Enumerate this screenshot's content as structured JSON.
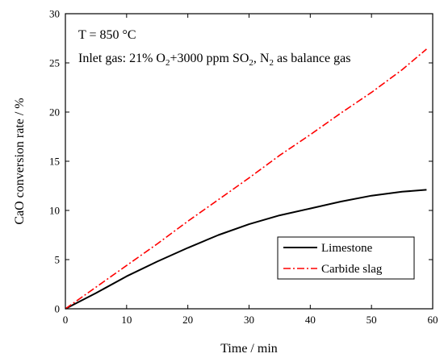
{
  "chart_data": {
    "type": "line",
    "title": "",
    "xlabel": "Time / min",
    "ylabel": "CaO conversion rate / %",
    "xlim": [
      0,
      60
    ],
    "ylim": [
      0,
      30
    ],
    "xticks": [
      0,
      10,
      20,
      30,
      40,
      50,
      60
    ],
    "yticks": [
      0,
      5,
      10,
      15,
      20,
      25,
      30
    ],
    "grid": false,
    "legend_position": "bottom-right",
    "annotations": {
      "temperature": "T = 850 °C",
      "gas": {
        "parts": [
          "Inlet gas: 21% O",
          "2",
          "+3000 ppm SO",
          "2",
          ", N",
          "2",
          " as balance gas"
        ],
        "subscript_flags": [
          false,
          true,
          false,
          true,
          false,
          true,
          false
        ]
      }
    },
    "series": [
      {
        "name": "Limestone",
        "color": "#000000",
        "dash": "solid",
        "x": [
          0,
          5,
          10,
          15,
          20,
          25,
          30,
          35,
          40,
          45,
          50,
          55,
          59
        ],
        "y": [
          0,
          1.6,
          3.3,
          4.8,
          6.2,
          7.5,
          8.6,
          9.5,
          10.2,
          10.9,
          11.5,
          11.9,
          12.1
        ]
      },
      {
        "name": "Carbide slag",
        "color": "#ff0000",
        "dash": "dashdot",
        "x": [
          0,
          5,
          10,
          15,
          20,
          25,
          30,
          35,
          40,
          45,
          50,
          55,
          59
        ],
        "y": [
          0,
          2.2,
          4.4,
          6.6,
          8.9,
          11.1,
          13.3,
          15.6,
          17.7,
          19.9,
          22.0,
          24.3,
          26.4
        ]
      }
    ]
  }
}
